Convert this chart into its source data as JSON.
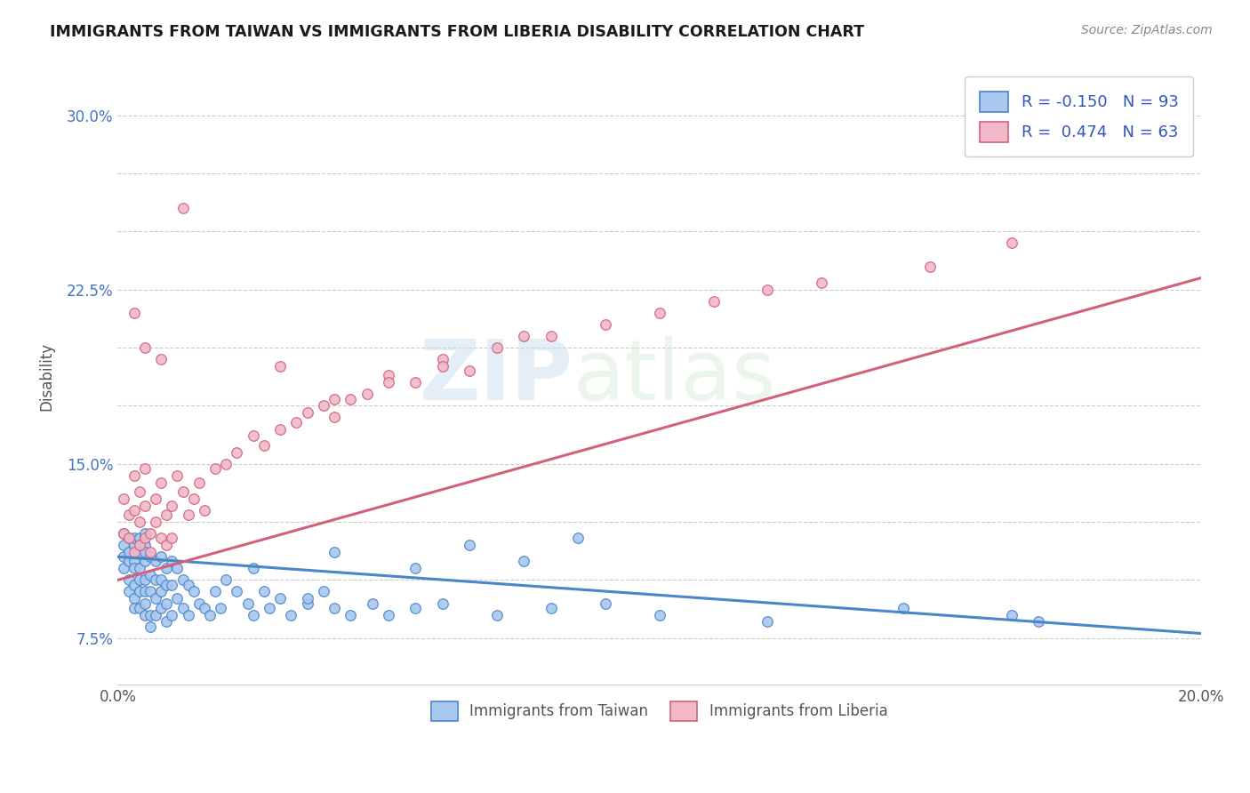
{
  "title": "IMMIGRANTS FROM TAIWAN VS IMMIGRANTS FROM LIBERIA DISABILITY CORRELATION CHART",
  "source": "Source: ZipAtlas.com",
  "ylabel": "Disability",
  "xmin": 0.0,
  "xmax": 0.2,
  "ymin": 0.055,
  "ymax": 0.32,
  "yticks": [
    0.075,
    0.1,
    0.125,
    0.15,
    0.175,
    0.2,
    0.225,
    0.25,
    0.275,
    0.3
  ],
  "ytick_labels": [
    "7.5%",
    "",
    "",
    "15.0%",
    "",
    "",
    "22.5%",
    "",
    "",
    "30.0%"
  ],
  "xticks": [
    0.0,
    0.025,
    0.05,
    0.075,
    0.1,
    0.125,
    0.15,
    0.175,
    0.2
  ],
  "xtick_labels": [
    "0.0%",
    "",
    "",
    "",
    "",
    "",
    "",
    "",
    "20.0%"
  ],
  "taiwan_color": "#4a86c8",
  "taiwan_color_fill": "#a8c8f0",
  "liberia_color": "#d4607a",
  "liberia_color_fill": "#f0b8c8",
  "taiwan_R": -0.15,
  "taiwan_N": 93,
  "liberia_R": 0.474,
  "liberia_N": 63,
  "legend_label_taiwan": "Immigrants from Taiwan",
  "legend_label_liberia": "Immigrants from Liberia",
  "watermark_zip": "ZIP",
  "watermark_atlas": "atlas",
  "taiwan_line_x": [
    0.0,
    0.2
  ],
  "taiwan_line_y": [
    0.11,
    0.077
  ],
  "liberia_line_x": [
    0.0,
    0.2
  ],
  "liberia_line_y": [
    0.1,
    0.23
  ],
  "taiwan_x": [
    0.001,
    0.001,
    0.001,
    0.001,
    0.002,
    0.002,
    0.002,
    0.002,
    0.002,
    0.003,
    0.003,
    0.003,
    0.003,
    0.003,
    0.003,
    0.003,
    0.004,
    0.004,
    0.004,
    0.004,
    0.004,
    0.004,
    0.005,
    0.005,
    0.005,
    0.005,
    0.005,
    0.005,
    0.005,
    0.005,
    0.006,
    0.006,
    0.006,
    0.006,
    0.006,
    0.007,
    0.007,
    0.007,
    0.007,
    0.008,
    0.008,
    0.008,
    0.008,
    0.009,
    0.009,
    0.009,
    0.009,
    0.01,
    0.01,
    0.01,
    0.011,
    0.011,
    0.012,
    0.012,
    0.013,
    0.013,
    0.014,
    0.015,
    0.016,
    0.017,
    0.018,
    0.019,
    0.02,
    0.022,
    0.024,
    0.025,
    0.027,
    0.028,
    0.03,
    0.032,
    0.035,
    0.038,
    0.04,
    0.043,
    0.047,
    0.05,
    0.055,
    0.06,
    0.07,
    0.08,
    0.09,
    0.1,
    0.12,
    0.145,
    0.165,
    0.17,
    0.025,
    0.035,
    0.04,
    0.055,
    0.065,
    0.075,
    0.085
  ],
  "taiwan_y": [
    0.11,
    0.115,
    0.105,
    0.12,
    0.108,
    0.118,
    0.112,
    0.1,
    0.095,
    0.115,
    0.108,
    0.118,
    0.105,
    0.098,
    0.092,
    0.088,
    0.112,
    0.105,
    0.118,
    0.1,
    0.095,
    0.088,
    0.115,
    0.108,
    0.1,
    0.095,
    0.09,
    0.085,
    0.112,
    0.12,
    0.11,
    0.102,
    0.095,
    0.085,
    0.08,
    0.108,
    0.1,
    0.092,
    0.085,
    0.11,
    0.1,
    0.095,
    0.088,
    0.105,
    0.098,
    0.09,
    0.082,
    0.108,
    0.098,
    0.085,
    0.105,
    0.092,
    0.1,
    0.088,
    0.098,
    0.085,
    0.095,
    0.09,
    0.088,
    0.085,
    0.095,
    0.088,
    0.1,
    0.095,
    0.09,
    0.085,
    0.095,
    0.088,
    0.092,
    0.085,
    0.09,
    0.095,
    0.088,
    0.085,
    0.09,
    0.085,
    0.088,
    0.09,
    0.085,
    0.088,
    0.09,
    0.085,
    0.082,
    0.088,
    0.085,
    0.082,
    0.105,
    0.092,
    0.112,
    0.105,
    0.115,
    0.108,
    0.118
  ],
  "liberia_x": [
    0.001,
    0.001,
    0.002,
    0.002,
    0.003,
    0.003,
    0.003,
    0.004,
    0.004,
    0.004,
    0.005,
    0.005,
    0.005,
    0.006,
    0.006,
    0.007,
    0.007,
    0.008,
    0.008,
    0.009,
    0.009,
    0.01,
    0.01,
    0.011,
    0.012,
    0.013,
    0.014,
    0.015,
    0.016,
    0.018,
    0.02,
    0.022,
    0.025,
    0.027,
    0.03,
    0.033,
    0.035,
    0.038,
    0.04,
    0.043,
    0.046,
    0.05,
    0.055,
    0.06,
    0.065,
    0.07,
    0.075,
    0.08,
    0.09,
    0.1,
    0.11,
    0.12,
    0.13,
    0.03,
    0.04,
    0.05,
    0.06,
    0.003,
    0.005,
    0.008,
    0.012,
    0.15,
    0.165
  ],
  "liberia_y": [
    0.12,
    0.135,
    0.128,
    0.118,
    0.13,
    0.145,
    0.112,
    0.125,
    0.138,
    0.115,
    0.132,
    0.118,
    0.148,
    0.12,
    0.112,
    0.135,
    0.125,
    0.118,
    0.142,
    0.128,
    0.115,
    0.132,
    0.118,
    0.145,
    0.138,
    0.128,
    0.135,
    0.142,
    0.13,
    0.148,
    0.15,
    0.155,
    0.162,
    0.158,
    0.165,
    0.168,
    0.172,
    0.175,
    0.17,
    0.178,
    0.18,
    0.188,
    0.185,
    0.195,
    0.19,
    0.2,
    0.205,
    0.205,
    0.21,
    0.215,
    0.22,
    0.225,
    0.228,
    0.192,
    0.178,
    0.185,
    0.192,
    0.215,
    0.2,
    0.195,
    0.26,
    0.235,
    0.245
  ]
}
